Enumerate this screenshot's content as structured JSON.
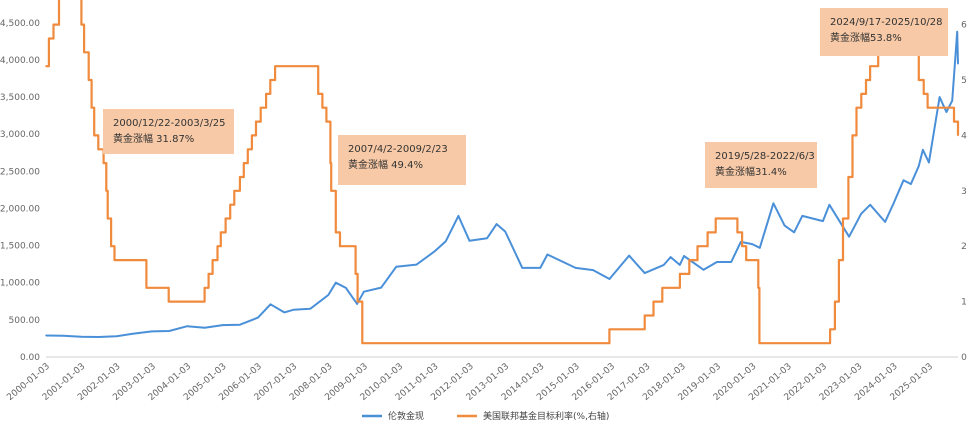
{
  "chart_data": {
    "type": "line",
    "title": "",
    "x_date_range": [
      "2000-01-03",
      "2025-10-28"
    ],
    "x_tick_labels": [
      "2000-01-03",
      "2001-01-03",
      "2002-01-03",
      "2003-01-03",
      "2004-01-03",
      "2005-01-03",
      "2006-01-03",
      "2007-01-03",
      "2008-01-03",
      "2009-01-03",
      "2010-01-03",
      "2011-01-03",
      "2012-01-03",
      "2013-01-03",
      "2014-01-03",
      "2015-01-03",
      "2016-01-03",
      "2017-01-03",
      "2018-01-03",
      "2019-01-03",
      "2020-01-03",
      "2021-01-03",
      "2022-01-03",
      "2023-01-03",
      "2024-01-03",
      "2025-01-03"
    ],
    "y_left": {
      "ticks": [
        "0.00",
        "500.00",
        "1,000.00",
        "1,500.00",
        "2,000.00",
        "2,500.00",
        "3,000.00",
        "3,500.00",
        "4,000.00",
        "4,500.00"
      ],
      "ylim": [
        0,
        4700
      ]
    },
    "y_right": {
      "ticks": [
        "0",
        "1",
        "2",
        "3",
        "4",
        "5",
        "6"
      ],
      "ylim": [
        0,
        6.3
      ]
    },
    "grid": false,
    "legend_position": "bottom",
    "series": [
      {
        "name": "伦敦金现",
        "axis": "left",
        "color": "#4a90d9",
        "points": [
          [
            "2000-01-03",
            290
          ],
          [
            "2000-06-30",
            285
          ],
          [
            "2001-01-02",
            272
          ],
          [
            "2001-06-29",
            270
          ],
          [
            "2002-01-02",
            280
          ],
          [
            "2002-06-28",
            315
          ],
          [
            "2003-01-02",
            345
          ],
          [
            "2003-06-30",
            350
          ],
          [
            "2004-01-02",
            415
          ],
          [
            "2004-06-30",
            395
          ],
          [
            "2005-01-03",
            430
          ],
          [
            "2005-06-30",
            435
          ],
          [
            "2006-01-03",
            530
          ],
          [
            "2006-05-12",
            710
          ],
          [
            "2006-10-02",
            600
          ],
          [
            "2007-01-03",
            635
          ],
          [
            "2007-06-29",
            650
          ],
          [
            "2007-12-31",
            835
          ],
          [
            "2008-03-17",
            1000
          ],
          [
            "2008-06-30",
            930
          ],
          [
            "2008-10-24",
            715
          ],
          [
            "2009-01-02",
            880
          ],
          [
            "2009-06-30",
            935
          ],
          [
            "2009-12-02",
            1215
          ],
          [
            "2010-06-30",
            1245
          ],
          [
            "2010-12-31",
            1420
          ],
          [
            "2011-04-29",
            1560
          ],
          [
            "2011-09-06",
            1900
          ],
          [
            "2011-12-30",
            1565
          ],
          [
            "2012-06-29",
            1600
          ],
          [
            "2012-10-05",
            1790
          ],
          [
            "2013-01-02",
            1690
          ],
          [
            "2013-06-28",
            1200
          ],
          [
            "2013-12-31",
            1200
          ],
          [
            "2014-03-14",
            1380
          ],
          [
            "2014-12-31",
            1200
          ],
          [
            "2015-06-30",
            1170
          ],
          [
            "2015-12-17",
            1050
          ],
          [
            "2016-07-06",
            1365
          ],
          [
            "2016-12-15",
            1130
          ],
          [
            "2017-06-30",
            1240
          ],
          [
            "2017-09-08",
            1345
          ],
          [
            "2017-12-12",
            1240
          ],
          [
            "2018-01-25",
            1360
          ],
          [
            "2018-08-16",
            1175
          ],
          [
            "2018-12-31",
            1280
          ],
          [
            "2019-05-28",
            1280
          ],
          [
            "2019-09-04",
            1550
          ],
          [
            "2019-12-31",
            1520
          ],
          [
            "2020-03-19",
            1470
          ],
          [
            "2020-08-06",
            2070
          ],
          [
            "2020-11-30",
            1770
          ],
          [
            "2021-03-08",
            1680
          ],
          [
            "2021-06-01",
            1900
          ],
          [
            "2021-12-31",
            1830
          ],
          [
            "2022-03-08",
            2050
          ],
          [
            "2022-09-28",
            1620
          ],
          [
            "2023-01-31",
            1930
          ],
          [
            "2023-05-04",
            2050
          ],
          [
            "2023-10-05",
            1820
          ],
          [
            "2023-12-29",
            2060
          ],
          [
            "2024-04-12",
            2380
          ],
          [
            "2024-06-28",
            2330
          ],
          [
            "2024-09-17",
            2570
          ],
          [
            "2024-10-30",
            2790
          ],
          [
            "2024-12-31",
            2620
          ],
          [
            "2025-04-21",
            3500
          ],
          [
            "2025-06-30",
            3300
          ],
          [
            "2025-08-29",
            3450
          ],
          [
            "2025-10-20",
            4380
          ],
          [
            "2025-10-28",
            3950
          ]
        ]
      },
      {
        "name": "美国联邦基金目标利率(%,右轴)",
        "axis": "right",
        "color": "#f08a3c",
        "step": true,
        "points": [
          [
            "2000-01-03",
            5.25
          ],
          [
            "2000-02-02",
            5.75
          ],
          [
            "2000-03-21",
            6.0
          ],
          [
            "2000-05-16",
            6.5
          ],
          [
            "2001-01-03",
            6.0
          ],
          [
            "2001-01-31",
            5.5
          ],
          [
            "2001-03-20",
            5.0
          ],
          [
            "2001-04-18",
            4.5
          ],
          [
            "2001-05-15",
            4.0
          ],
          [
            "2001-06-27",
            3.75
          ],
          [
            "2001-08-21",
            3.5
          ],
          [
            "2001-09-17",
            3.0
          ],
          [
            "2001-10-02",
            2.5
          ],
          [
            "2001-11-06",
            2.0
          ],
          [
            "2001-12-11",
            1.75
          ],
          [
            "2002-11-06",
            1.25
          ],
          [
            "2003-06-25",
            1.0
          ],
          [
            "2004-06-30",
            1.25
          ],
          [
            "2004-08-10",
            1.5
          ],
          [
            "2004-09-21",
            1.75
          ],
          [
            "2004-11-10",
            2.0
          ],
          [
            "2004-12-14",
            2.25
          ],
          [
            "2005-02-02",
            2.5
          ],
          [
            "2005-03-22",
            2.75
          ],
          [
            "2005-05-03",
            3.0
          ],
          [
            "2005-06-30",
            3.25
          ],
          [
            "2005-08-09",
            3.5
          ],
          [
            "2005-09-20",
            3.75
          ],
          [
            "2005-11-01",
            4.0
          ],
          [
            "2005-12-13",
            4.25
          ],
          [
            "2006-01-31",
            4.5
          ],
          [
            "2006-03-28",
            4.75
          ],
          [
            "2006-05-10",
            5.0
          ],
          [
            "2006-06-29",
            5.25
          ],
          [
            "2007-09-18",
            4.75
          ],
          [
            "2007-10-31",
            4.5
          ],
          [
            "2007-12-11",
            4.25
          ],
          [
            "2008-01-22",
            3.5
          ],
          [
            "2008-01-30",
            3.0
          ],
          [
            "2008-03-18",
            2.25
          ],
          [
            "2008-04-30",
            2.0
          ],
          [
            "2008-10-08",
            1.5
          ],
          [
            "2008-10-29",
            1.0
          ],
          [
            "2008-12-16",
            0.25
          ],
          [
            "2015-12-16",
            0.5
          ],
          [
            "2016-12-14",
            0.75
          ],
          [
            "2017-03-15",
            1.0
          ],
          [
            "2017-06-14",
            1.25
          ],
          [
            "2017-12-13",
            1.5
          ],
          [
            "2018-03-21",
            1.75
          ],
          [
            "2018-06-13",
            2.0
          ],
          [
            "2018-09-26",
            2.25
          ],
          [
            "2018-12-19",
            2.5
          ],
          [
            "2019-07-31",
            2.25
          ],
          [
            "2019-09-18",
            2.0
          ],
          [
            "2019-10-30",
            1.75
          ],
          [
            "2020-03-03",
            1.25
          ],
          [
            "2020-03-15",
            0.25
          ],
          [
            "2022-03-16",
            0.5
          ],
          [
            "2022-05-04",
            1.0
          ],
          [
            "2022-06-15",
            1.75
          ],
          [
            "2022-07-27",
            2.5
          ],
          [
            "2022-09-21",
            3.25
          ],
          [
            "2022-11-02",
            4.0
          ],
          [
            "2022-12-14",
            4.5
          ],
          [
            "2023-02-01",
            4.75
          ],
          [
            "2023-03-22",
            5.0
          ],
          [
            "2023-05-03",
            5.25
          ],
          [
            "2023-07-26",
            5.5
          ],
          [
            "2024-09-18",
            5.0
          ],
          [
            "2024-11-07",
            4.75
          ],
          [
            "2024-12-18",
            4.5
          ],
          [
            "2025-09-17",
            4.25
          ],
          [
            "2025-10-28",
            4.0
          ]
        ]
      }
    ],
    "annotations": [
      {
        "line1": "2000/12/22-2003/3/25",
        "line2": "黄金涨幅 31.87%"
      },
      {
        "line1": "2007/4/2-2009/2/23",
        "line2": "黄金涨幅 49.4%"
      },
      {
        "line1": "2019/5/28-2022/6/3",
        "line2": "黄金涨幅31.4%"
      },
      {
        "line1": "2024/9/17-2025/10/28",
        "line2": "黄金涨幅53.8%"
      }
    ]
  }
}
